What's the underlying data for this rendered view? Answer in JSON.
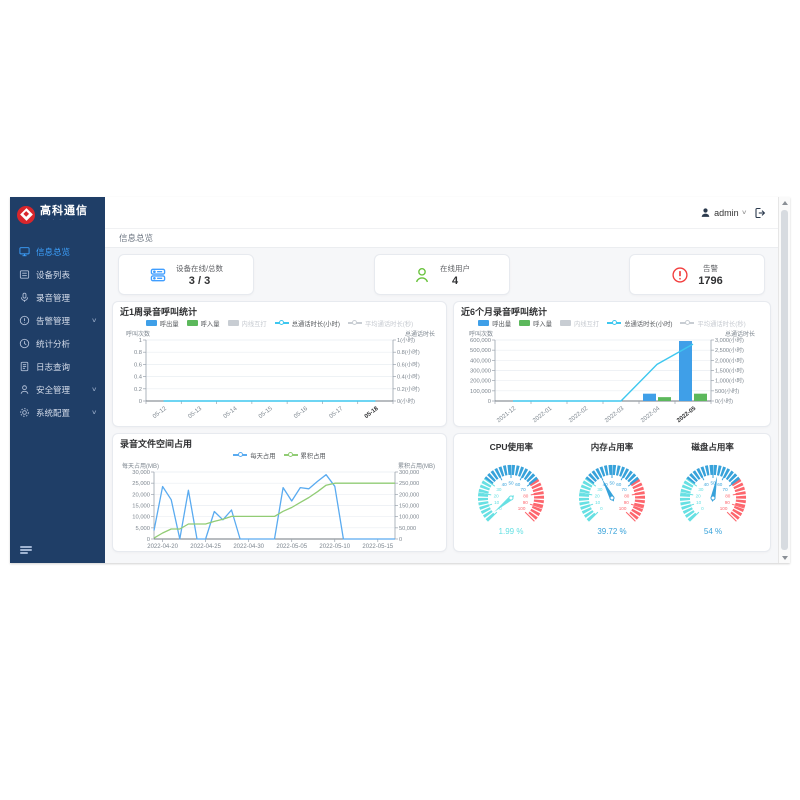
{
  "logo": {
    "title": "高科通信",
    "tagline": "· · · · · ·"
  },
  "header": {
    "username": "admin"
  },
  "breadcrumb": "信息总览",
  "sidebar": {
    "items": [
      {
        "label": "信息总览",
        "icon": "dashboard",
        "active": true,
        "children": false
      },
      {
        "label": "设备列表",
        "icon": "device-list",
        "active": false,
        "children": false
      },
      {
        "label": "录音管理",
        "icon": "microphone",
        "active": false,
        "children": false
      },
      {
        "label": "告警管理",
        "icon": "alert",
        "active": false,
        "children": true
      },
      {
        "label": "统计分析",
        "icon": "stats",
        "active": false,
        "children": false
      },
      {
        "label": "日志查询",
        "icon": "log",
        "active": false,
        "children": false
      },
      {
        "label": "安全管理",
        "icon": "security",
        "active": false,
        "children": true
      },
      {
        "label": "系统配置",
        "icon": "settings",
        "active": false,
        "children": true
      }
    ]
  },
  "cards": [
    {
      "label": "设备在线/总数",
      "value": "3 / 3",
      "icon": "server-icon",
      "color": "#409eff"
    },
    {
      "label": "在线用户",
      "value": "4",
      "icon": "online-user-icon",
      "color": "#67c23a"
    },
    {
      "label": "告警",
      "value": "1796",
      "icon": "alarm-icon",
      "color": "#f23c3c"
    }
  ],
  "chart_data": [
    {
      "id": "week_calls",
      "type": "bar+line",
      "title": "近1周录音呼叫统计",
      "ylabel_left": "呼叫次数",
      "ylabel_right": "总通话时长",
      "legend": [
        {
          "label": "呼出量",
          "glyph": "bar",
          "color": "#3f9fe8",
          "enabled": true
        },
        {
          "label": "呼入量",
          "glyph": "bar",
          "color": "#5cb85c",
          "enabled": true
        },
        {
          "label": "内线互打",
          "glyph": "bar",
          "color": "#c8cdd3",
          "enabled": false
        },
        {
          "label": "总通话时长(小时)",
          "glyph": "line",
          "color": "#3ec7ef",
          "enabled": true
        },
        {
          "label": "平均通话时长(秒)",
          "glyph": "line",
          "color": "#c8cdd3",
          "enabled": false
        }
      ],
      "categories": [
        "05-12",
        "05-13",
        "05-14",
        "05-15",
        "05-16",
        "05-17",
        "05-18"
      ],
      "left_ticks": [
        0,
        0.2,
        0.4,
        0.6,
        0.8,
        1
      ],
      "right_ticks": [
        0,
        0.2,
        0.4,
        0.6,
        0.8,
        1
      ],
      "right_suffix": "(小时)",
      "series": [
        {
          "name": "呼出量",
          "type": "bar",
          "axis": "left",
          "color": "#3f9fe8",
          "values": [
            0,
            0,
            0,
            0,
            0,
            0,
            0
          ]
        },
        {
          "name": "呼入量",
          "type": "bar",
          "axis": "left",
          "color": "#5cb85c",
          "values": [
            0,
            0,
            0,
            0,
            0,
            0,
            0
          ]
        },
        {
          "name": "总通话时长(小时)",
          "type": "line",
          "axis": "right",
          "color": "#3ec7ef",
          "values": [
            0,
            0,
            0,
            0,
            0,
            0,
            0
          ]
        }
      ]
    },
    {
      "id": "six_month_calls",
      "type": "bar+line",
      "title": "近6个月录音呼叫统计",
      "ylabel_left": "呼叫次数",
      "ylabel_right": "总通话时长",
      "legend": [
        {
          "label": "呼出量",
          "glyph": "bar",
          "color": "#3f9fe8",
          "enabled": true
        },
        {
          "label": "呼入量",
          "glyph": "bar",
          "color": "#5cb85c",
          "enabled": true
        },
        {
          "label": "内线互打",
          "glyph": "bar",
          "color": "#c8cdd3",
          "enabled": false
        },
        {
          "label": "总通话时长(小时)",
          "glyph": "line",
          "color": "#3ec7ef",
          "enabled": true
        },
        {
          "label": "平均通话时长(秒)",
          "glyph": "line",
          "color": "#c8cdd3",
          "enabled": false
        }
      ],
      "categories": [
        "2021-12",
        "2022-01",
        "2022-02",
        "2022-03",
        "2022-04",
        "2022-05"
      ],
      "left_ticks": [
        0,
        100000,
        200000,
        300000,
        400000,
        500000,
        600000
      ],
      "right_ticks": [
        0,
        500,
        1000,
        1500,
        2000,
        2500,
        3000
      ],
      "right_suffix": "(小时)",
      "series": [
        {
          "name": "呼出量",
          "type": "bar",
          "axis": "left",
          "color": "#3f9fe8",
          "values": [
            0,
            0,
            0,
            0,
            72000,
            590000
          ]
        },
        {
          "name": "呼入量",
          "type": "bar",
          "axis": "left",
          "color": "#5cb85c",
          "values": [
            0,
            0,
            0,
            0,
            38000,
            72000
          ]
        },
        {
          "name": "总通话时长(小时)",
          "type": "line",
          "axis": "right",
          "color": "#3ec7ef",
          "values": [
            0,
            0,
            0,
            0,
            1800,
            2800
          ]
        }
      ]
    },
    {
      "id": "storage",
      "type": "line",
      "title": "录音文件空间占用",
      "ylabel_left": "每天占用(MB)",
      "ylabel_right": "累积占用(MB)",
      "legend": [
        {
          "label": "每天占用",
          "glyph": "line",
          "color": "#5aabf0",
          "enabled": true
        },
        {
          "label": "累积占用",
          "glyph": "line",
          "color": "#91cc75",
          "enabled": true
        }
      ],
      "x_dates_start": "2022-04-19",
      "x_tick_labels": [
        "2022-04-20",
        "2022-04-25",
        "2022-04-30",
        "2022-05-05",
        "2022-05-10",
        "2022-05-15"
      ],
      "x_tick_indices": [
        1,
        6,
        11,
        16,
        21,
        26
      ],
      "point_count": 29,
      "left_ticks": [
        0,
        5000,
        10000,
        15000,
        20000,
        25000,
        30000
      ],
      "right_ticks": [
        0,
        50000,
        100000,
        150000,
        200000,
        250000,
        300000
      ],
      "right_suffix": "",
      "series": [
        {
          "name": "每天占用",
          "type": "line",
          "axis": "left",
          "color": "#5aabf0",
          "values": [
            3800,
            23500,
            17600,
            0,
            21800,
            0,
            0,
            12300,
            8600,
            13000,
            0,
            0,
            0,
            0,
            0,
            23000,
            17000,
            23000,
            22500,
            25800,
            28800,
            23600,
            0,
            0,
            0,
            0,
            0,
            0,
            0
          ]
        },
        {
          "name": "累积占用",
          "type": "line",
          "axis": "right",
          "color": "#91cc75",
          "values": [
            4000,
            27000,
            45000,
            45000,
            67000,
            67000,
            67000,
            79000,
            88000,
            101000,
            101000,
            101000,
            101000,
            101000,
            101000,
            124000,
            141000,
            164000,
            186000,
            212000,
            241000,
            250000,
            250000,
            250000,
            250000,
            250000,
            250000,
            250000,
            250000
          ]
        }
      ]
    },
    {
      "id": "gauges",
      "type": "gauge",
      "min": 0,
      "max": 100,
      "zones": [
        [
          0,
          30,
          "#67e0e3"
        ],
        [
          30,
          70,
          "#37a2da"
        ],
        [
          70,
          100,
          "#fd666d"
        ]
      ],
      "items": [
        {
          "title": "CPU使用率",
          "value": 1.99,
          "display": "1.99 %"
        },
        {
          "title": "内存占用率",
          "value": 39.72,
          "display": "39.72 %"
        },
        {
          "title": "磁盘占用率",
          "value": 54,
          "display": "54 %"
        }
      ]
    }
  ]
}
